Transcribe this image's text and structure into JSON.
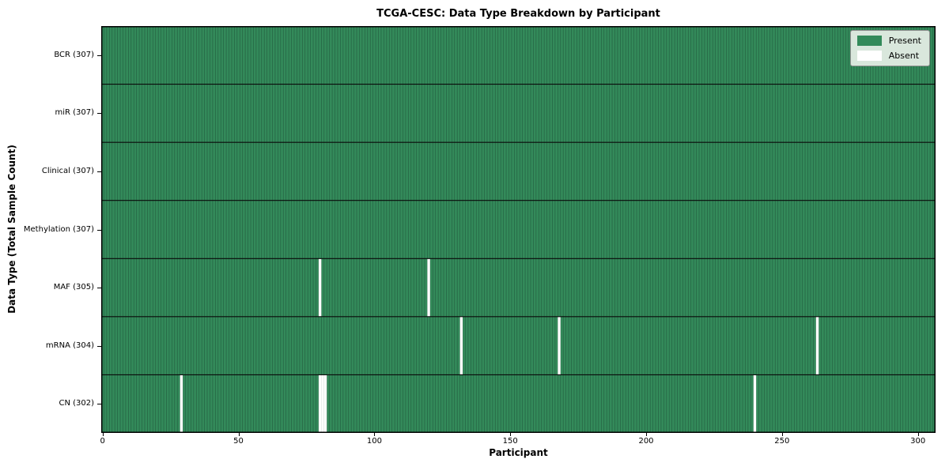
{
  "title": "TCGA-CESC: Data Type Breakdown by Participant",
  "axes": {
    "xlabel": "Participant",
    "ylabel": "Data Type (Total Sample Count)"
  },
  "legend": {
    "position": "upper-right",
    "items": [
      {
        "label": "Present",
        "color": "#338a5a"
      },
      {
        "label": "Absent",
        "color": "#ffffff"
      }
    ]
  },
  "colors": {
    "present": "#338a5a",
    "absent": "#ffffff",
    "cell_edge": "#1b4330",
    "row_divider": "#0a0a0a",
    "plot_border": "#000000",
    "legend_bg": "#d9e7dc",
    "text": "#000000"
  },
  "chart_data": {
    "type": "heatmap",
    "title": "TCGA-CESC: Data Type Breakdown by Participant",
    "xlabel": "Participant",
    "ylabel": "Data Type (Total Sample Count)",
    "n_participants": 307,
    "x_ticks": [
      0,
      50,
      100,
      150,
      200,
      250,
      300
    ],
    "xlim": [
      -0.5,
      306.5
    ],
    "grid": false,
    "legend_entries": [
      "Present",
      "Absent"
    ],
    "rows": [
      {
        "label": "BCR (307)",
        "data_type": "BCR",
        "total": 307,
        "absent_participants": []
      },
      {
        "label": "miR (307)",
        "data_type": "miR",
        "total": 307,
        "absent_participants": []
      },
      {
        "label": "Clinical (307)",
        "data_type": "Clinical",
        "total": 307,
        "absent_participants": []
      },
      {
        "label": "Methylation (307)",
        "data_type": "Methylation",
        "total": 307,
        "absent_participants": []
      },
      {
        "label": "MAF (305)",
        "data_type": "MAF",
        "total": 305,
        "absent_participants": [
          80,
          120
        ]
      },
      {
        "label": "mRNA (304)",
        "data_type": "mRNA",
        "total": 304,
        "absent_participants": [
          132,
          168,
          263
        ]
      },
      {
        "label": "CN (302)",
        "data_type": "CN",
        "total": 302,
        "absent_participants": [
          29,
          80,
          81,
          82,
          240
        ]
      }
    ]
  }
}
